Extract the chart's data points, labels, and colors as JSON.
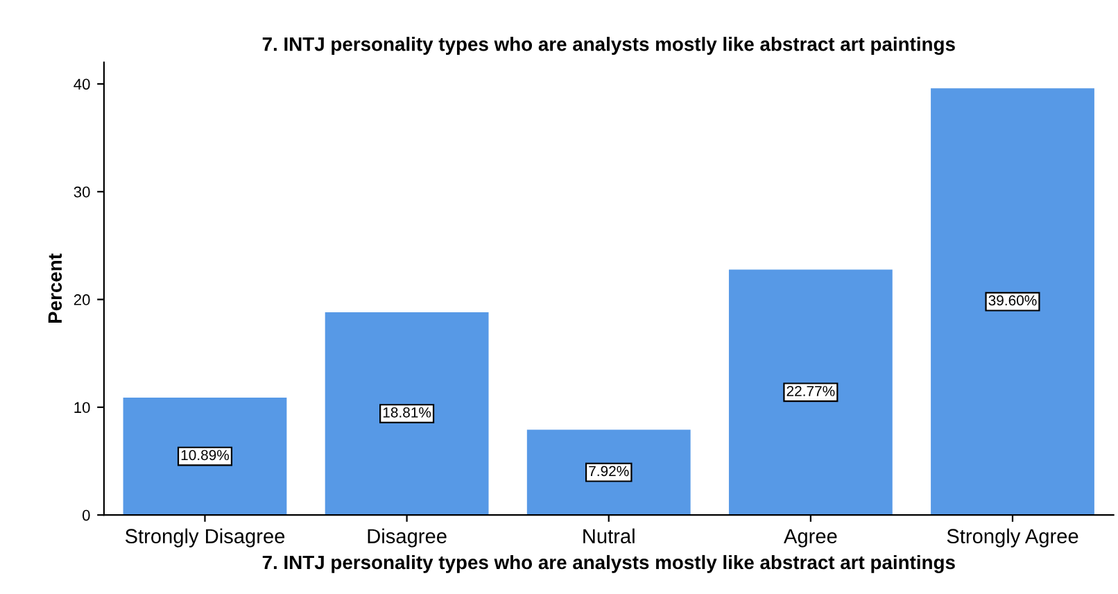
{
  "chart_data": {
    "type": "bar",
    "title": "7. INTJ personality types who are analysts mostly like abstract art paintings",
    "xlabel": "7. INTJ personality types who are analysts mostly like abstract art paintings",
    "ylabel": "Percent",
    "categories": [
      "Strongly Disagree",
      "Disagree",
      "Nutral",
      "Agree",
      "Strongly Agree"
    ],
    "values": [
      10.89,
      18.81,
      7.92,
      22.77,
      39.6
    ],
    "value_labels": [
      "10.89%",
      "18.81%",
      "7.92%",
      "22.77%",
      "39.60%"
    ],
    "color": "#5799e6",
    "ylim": [
      0,
      42
    ],
    "yticks": [
      0,
      10,
      20,
      30,
      40
    ],
    "grid": false
  }
}
